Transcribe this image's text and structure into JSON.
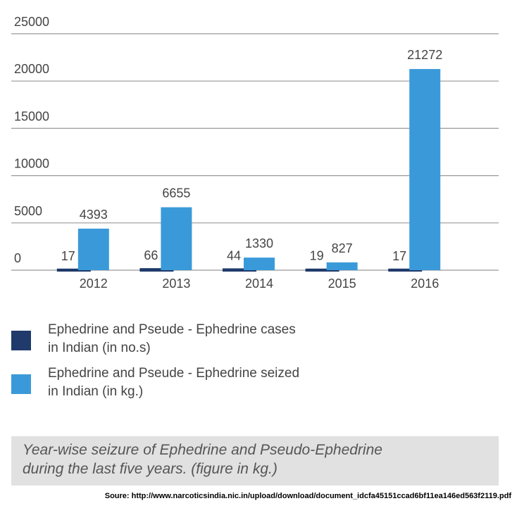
{
  "chart_data": {
    "type": "bar",
    "categories": [
      "2012",
      "2013",
      "2014",
      "2015",
      "2016"
    ],
    "series": [
      {
        "name": "Ephedrine and Pseude - Ephedrine cases\nin Indian (in no.s)",
        "color": "#1f3a6b",
        "values": [
          17,
          66,
          44,
          19,
          17
        ]
      },
      {
        "name": "Ephedrine and Pseude - Ephedrine seized\nin Indian (in kg.)",
        "color": "#3a9ad9",
        "values": [
          4393,
          6655,
          1330,
          827,
          21272
        ]
      }
    ],
    "ylim": [
      0,
      25000
    ],
    "yticks": [
      0,
      5000,
      10000,
      15000,
      20000,
      25000
    ],
    "grid": true,
    "caption": "Year-wise seizure of Ephedrine and Pseudo-Ephedrine\nduring the last five years. (figure in kg.)",
    "source": "Soure: http://www.narcoticsindia.nic.in/upload/download/document_idcfa45151ccad6bf11ea146ed563f2119.pdf"
  }
}
